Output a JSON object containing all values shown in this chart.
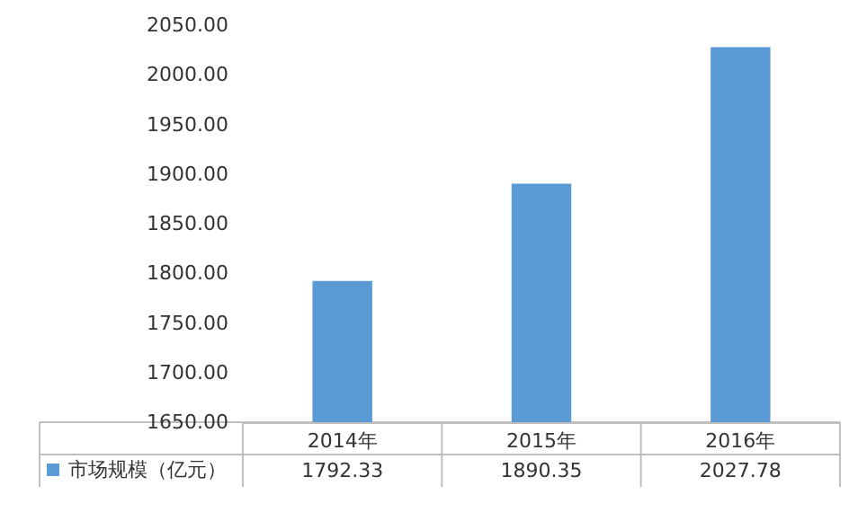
{
  "chart_data": {
    "type": "bar",
    "categories": [
      "2014年",
      "2015年",
      "2016年"
    ],
    "series": [
      {
        "name": "市场规模（亿元）",
        "color": "#5b9bd5",
        "values": [
          1792.33,
          1890.35,
          2027.78
        ]
      }
    ],
    "ylim": [
      1650,
      2050
    ],
    "yticks": [
      {
        "value": 1650,
        "label": "1650.00"
      },
      {
        "value": 1700,
        "label": "1700.00"
      },
      {
        "value": 1750,
        "label": "1750.00"
      },
      {
        "value": 1800,
        "label": "1800.00"
      },
      {
        "value": 1850,
        "label": "1850.00"
      },
      {
        "value": 1900,
        "label": "1900.00"
      },
      {
        "value": 1950,
        "label": "1950.00"
      },
      {
        "value": 2000,
        "label": "2000.00"
      },
      {
        "value": 2050,
        "label": "2050.00"
      }
    ],
    "data_labels": true,
    "legend": "bottom left",
    "grid": false
  }
}
